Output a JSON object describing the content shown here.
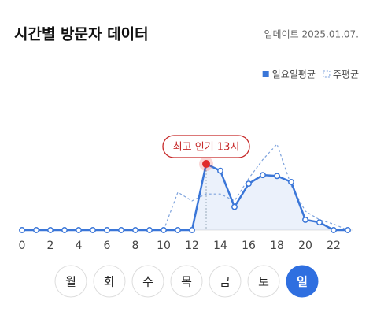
{
  "header": {
    "title": "시간별 방문자 데이터",
    "updated": "업데이트 2025.01.07."
  },
  "chart_data": {
    "type": "line",
    "x": [
      0,
      1,
      2,
      3,
      4,
      5,
      6,
      7,
      8,
      9,
      10,
      11,
      12,
      13,
      14,
      15,
      16,
      17,
      18,
      19,
      20,
      21,
      22,
      23
    ],
    "xlim": [
      0,
      23
    ],
    "xticks": [
      0,
      2,
      4,
      6,
      8,
      10,
      12,
      14,
      16,
      18,
      20,
      22
    ],
    "ylim": [
      0,
      110
    ],
    "legend": "top-right",
    "series": [
      {
        "name": "일요일평균",
        "color": "#3a76d8",
        "style": "solid",
        "values": [
          0,
          0,
          0,
          0,
          0,
          0,
          0,
          0,
          0,
          0,
          0,
          0,
          0,
          77,
          69,
          27,
          54,
          64,
          63,
          56,
          12,
          9,
          0,
          0
        ]
      },
      {
        "name": "주평균",
        "color": "#7ea3dd",
        "style": "dashed",
        "values": [
          0,
          0,
          0,
          0,
          0,
          0,
          0,
          0,
          0,
          0,
          0,
          44,
          34,
          42,
          42,
          34,
          60,
          82,
          100,
          52,
          22,
          12,
          7,
          0
        ]
      }
    ],
    "annotation": {
      "text": "최고 인기 13시",
      "series": 0,
      "index": 13
    }
  },
  "days": [
    "월",
    "화",
    "수",
    "목",
    "금",
    "토",
    "일"
  ],
  "selected_day": 6
}
